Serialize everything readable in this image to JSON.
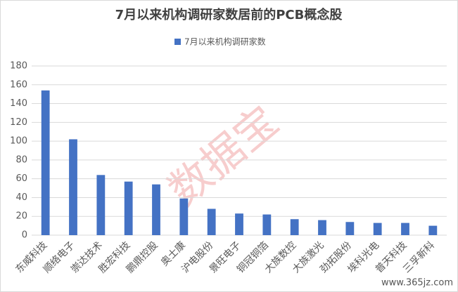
{
  "chart_data": {
    "type": "bar",
    "title": "7月以来机构调研家数居前的PCB概念股",
    "categories": [
      "东威科技",
      "顺络电子",
      "崇达技术",
      "胜宏科技",
      "鹏鼎控股",
      "奥士康",
      "沪电股份",
      "景旺电子",
      "铜冠铜箔",
      "大族数控",
      "大族激光",
      "劲拓股份",
      "埃科光电",
      "普天科技",
      "三孚新科"
    ],
    "series": [
      {
        "name": "7月以来机构调研家数",
        "color": "#4472c4",
        "values": [
          154,
          102,
          64,
          57,
          54,
          39,
          28,
          23,
          22,
          17,
          16,
          14,
          13,
          13,
          10
        ]
      }
    ],
    "ylim": [
      0,
      180
    ],
    "yticks": [
      0,
      20,
      40,
      60,
      80,
      100,
      120,
      140,
      160,
      180
    ],
    "grid": true,
    "legend": "top",
    "watermark": "数据宝",
    "source": "www.365jz.com"
  }
}
